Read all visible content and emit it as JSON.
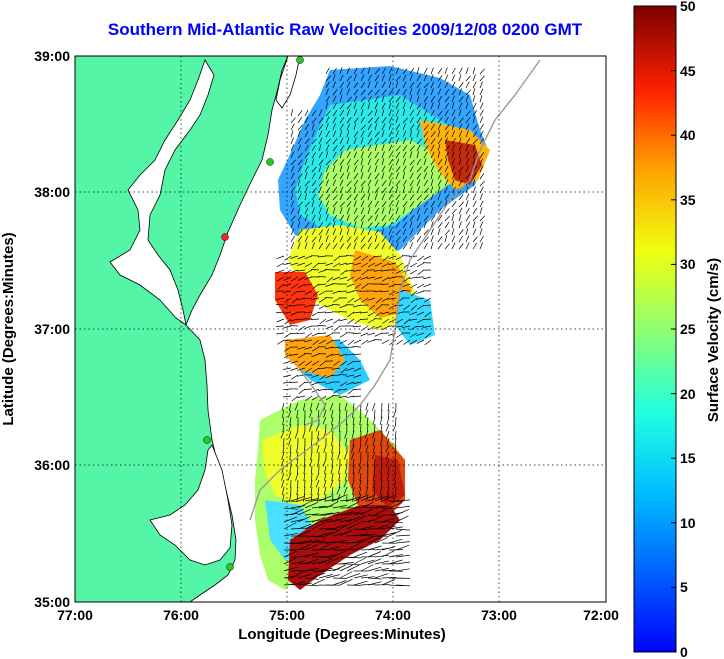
{
  "title": "Southern Mid-Atlantic Raw Velocities 2009/12/08 0200 GMT",
  "xlabel": "Longitude (Degrees:Minutes)",
  "ylabel": "Latitude (Degrees:Minutes)",
  "x_ticks": [
    "77:00",
    "76:00",
    "75:00",
    "74:00",
    "73:00",
    "72:00"
  ],
  "y_ticks": [
    "39:00",
    "38:00",
    "37:00",
    "36:00",
    "35:00"
  ],
  "colorbar": {
    "label": "Surface Velocity (cm/s)",
    "ticks": [
      "50",
      "45",
      "40",
      "35",
      "30",
      "25",
      "20",
      "15",
      "10",
      "5",
      "0"
    ],
    "range": [
      0,
      50
    ]
  },
  "colors": {
    "land": "#55f5a8",
    "water": "#ffffff",
    "title": "#0000ff",
    "station_green": "#22cc22",
    "station_red": "#ff2222"
  }
}
